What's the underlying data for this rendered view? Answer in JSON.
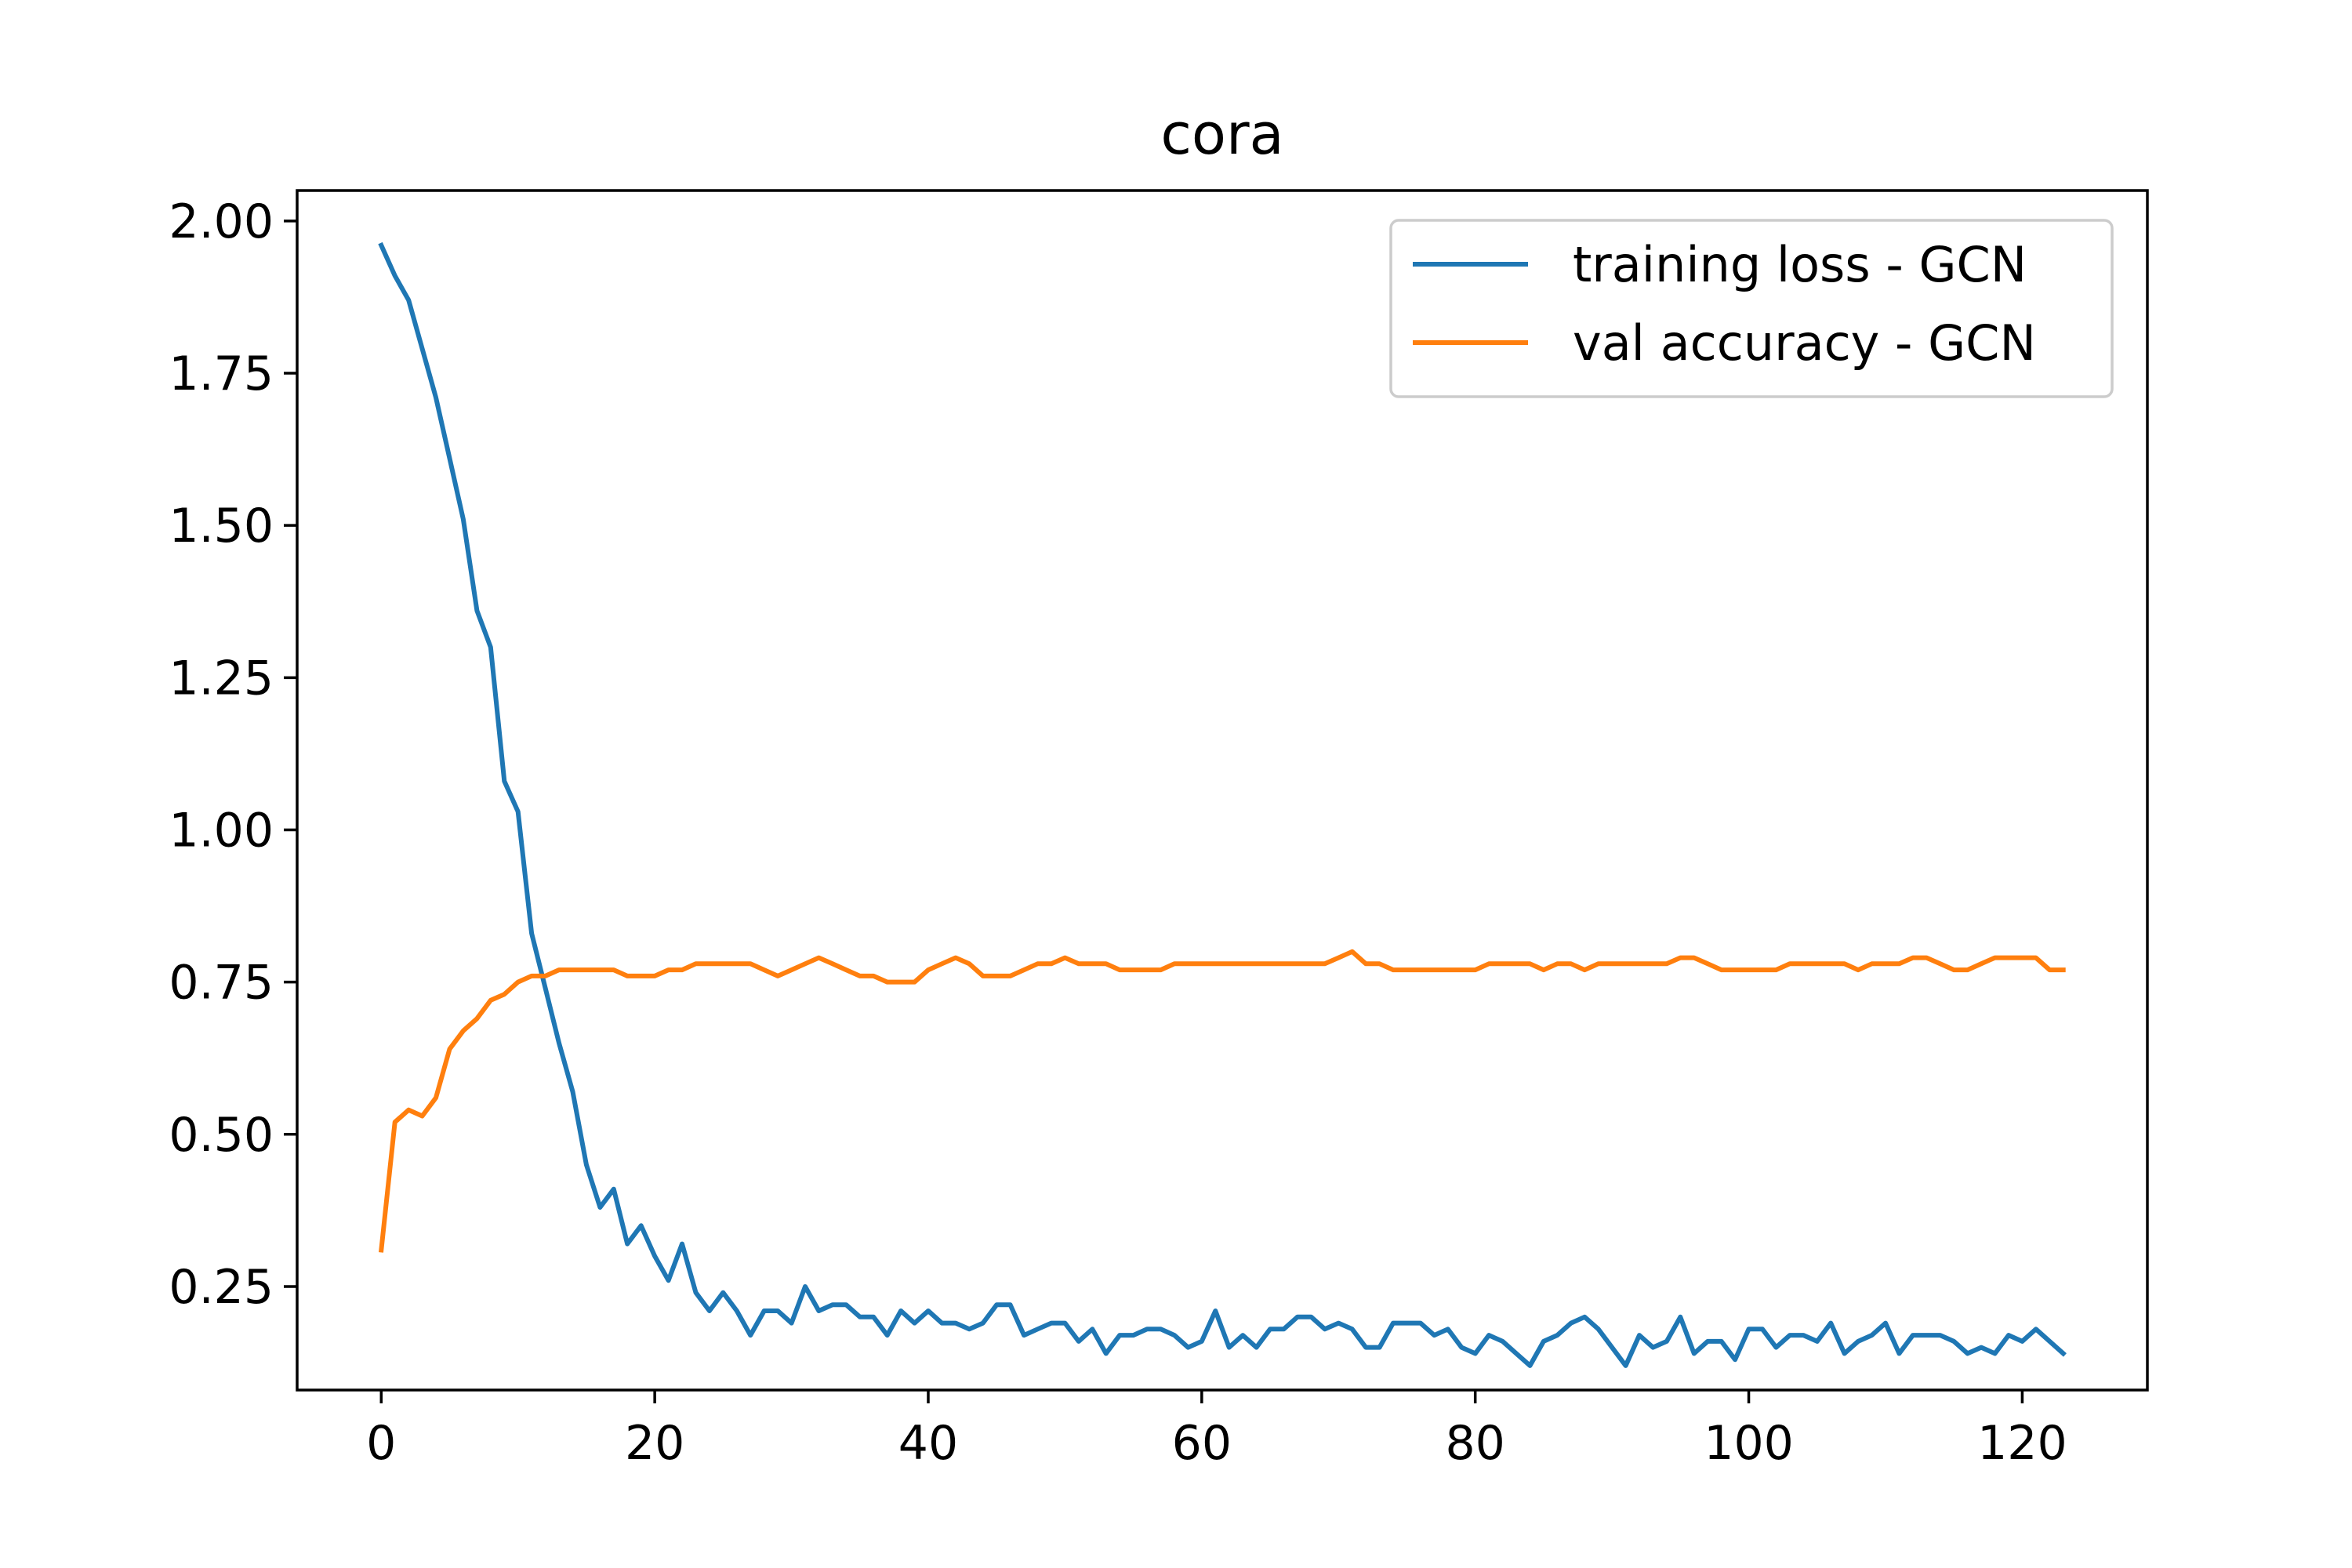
{
  "chart_data": {
    "type": "line",
    "title": "cora",
    "xlabel": "",
    "ylabel": "",
    "xlim": [
      -6.15,
      129.15
    ],
    "ylim": [
      0.08,
      2.05
    ],
    "xticks": [
      0,
      20,
      40,
      60,
      80,
      100,
      120
    ],
    "xtick_labels": [
      "0",
      "20",
      "40",
      "60",
      "80",
      "100",
      "120"
    ],
    "yticks": [
      0.25,
      0.5,
      0.75,
      1.0,
      1.25,
      1.5,
      1.75,
      2.0
    ],
    "ytick_labels": [
      "0.25",
      "0.50",
      "0.75",
      "1.00",
      "1.25",
      "1.50",
      "1.75",
      "2.00"
    ],
    "grid": false,
    "legend_position": "top-right",
    "series": [
      {
        "name": "training loss - GCN",
        "color": "#1f77b4",
        "values": [
          1.96,
          1.91,
          1.87,
          1.79,
          1.71,
          1.61,
          1.51,
          1.36,
          1.3,
          1.08,
          1.03,
          0.83,
          0.74,
          0.65,
          0.57,
          0.45,
          0.38,
          0.41,
          0.32,
          0.35,
          0.3,
          0.26,
          0.32,
          0.24,
          0.21,
          0.24,
          0.21,
          0.17,
          0.21,
          0.21,
          0.19,
          0.25,
          0.21,
          0.22,
          0.22,
          0.2,
          0.2,
          0.17,
          0.21,
          0.19,
          0.21,
          0.19,
          0.19,
          0.18,
          0.19,
          0.22,
          0.22,
          0.17,
          0.18,
          0.19,
          0.19,
          0.16,
          0.18,
          0.14,
          0.17,
          0.17,
          0.18,
          0.18,
          0.17,
          0.15,
          0.16,
          0.21,
          0.15,
          0.17,
          0.15,
          0.18,
          0.18,
          0.2,
          0.2,
          0.18,
          0.19,
          0.18,
          0.15,
          0.15,
          0.19,
          0.19,
          0.19,
          0.17,
          0.18,
          0.15,
          0.14,
          0.17,
          0.16,
          0.14,
          0.12,
          0.16,
          0.17,
          0.19,
          0.2,
          0.18,
          0.15,
          0.12,
          0.17,
          0.15,
          0.16,
          0.2,
          0.14,
          0.16,
          0.16,
          0.13,
          0.18,
          0.18,
          0.15,
          0.17,
          0.17,
          0.16,
          0.19,
          0.14,
          0.16,
          0.17,
          0.19,
          0.14,
          0.17,
          0.17,
          0.17,
          0.16,
          0.14,
          0.15,
          0.14,
          0.17,
          0.16,
          0.18,
          0.16,
          0.14
        ]
      },
      {
        "name": "val accuracy - GCN",
        "color": "#ff7f0e",
        "values": [
          0.31,
          0.52,
          0.54,
          0.53,
          0.56,
          0.64,
          0.67,
          0.69,
          0.72,
          0.73,
          0.75,
          0.76,
          0.76,
          0.77,
          0.77,
          0.77,
          0.77,
          0.77,
          0.76,
          0.76,
          0.76,
          0.77,
          0.77,
          0.78,
          0.78,
          0.78,
          0.78,
          0.78,
          0.77,
          0.76,
          0.77,
          0.78,
          0.79,
          0.78,
          0.77,
          0.76,
          0.76,
          0.75,
          0.75,
          0.75,
          0.77,
          0.78,
          0.79,
          0.78,
          0.76,
          0.76,
          0.76,
          0.77,
          0.78,
          0.78,
          0.79,
          0.78,
          0.78,
          0.78,
          0.77,
          0.77,
          0.77,
          0.77,
          0.78,
          0.78,
          0.78,
          0.78,
          0.78,
          0.78,
          0.78,
          0.78,
          0.78,
          0.78,
          0.78,
          0.78,
          0.79,
          0.8,
          0.78,
          0.78,
          0.77,
          0.77,
          0.77,
          0.77,
          0.77,
          0.77,
          0.77,
          0.78,
          0.78,
          0.78,
          0.78,
          0.77,
          0.78,
          0.78,
          0.77,
          0.78,
          0.78,
          0.78,
          0.78,
          0.78,
          0.78,
          0.79,
          0.79,
          0.78,
          0.77,
          0.77,
          0.77,
          0.77,
          0.77,
          0.78,
          0.78,
          0.78,
          0.78,
          0.78,
          0.77,
          0.78,
          0.78,
          0.78,
          0.79,
          0.79,
          0.78,
          0.77,
          0.77,
          0.78,
          0.79,
          0.79,
          0.79,
          0.79,
          0.77,
          0.77
        ]
      }
    ]
  }
}
